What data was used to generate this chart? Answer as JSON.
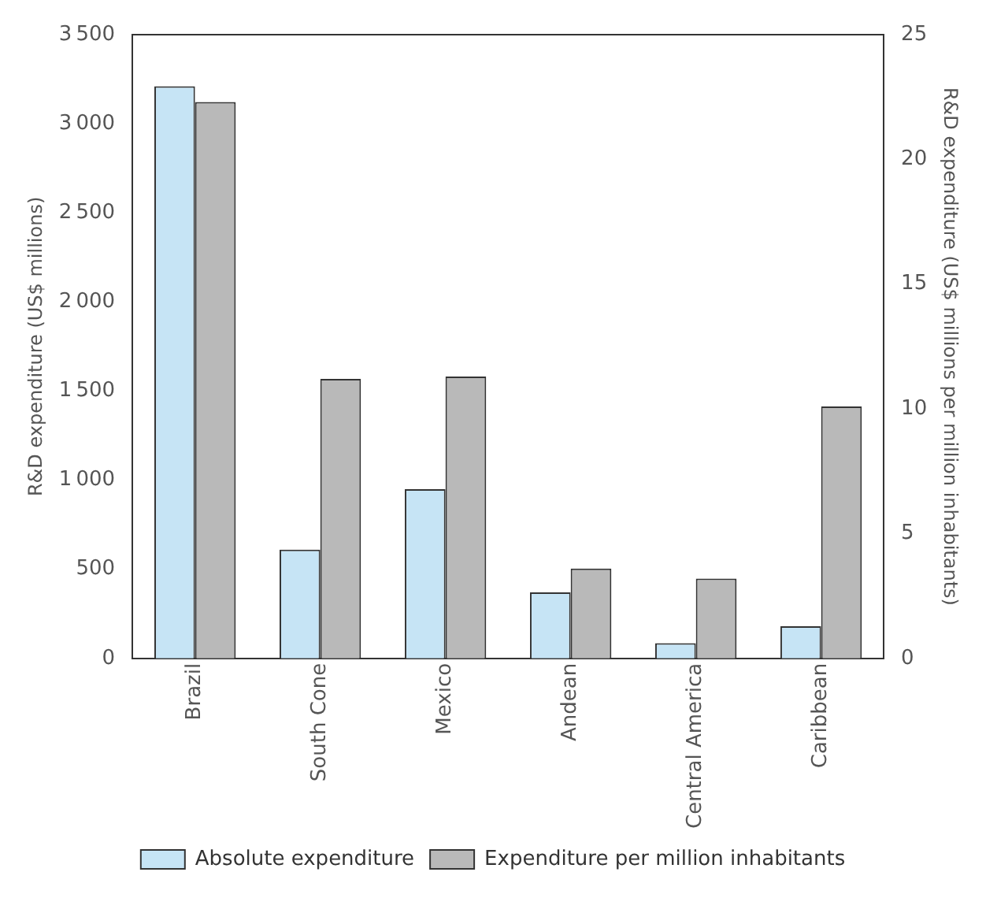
{
  "chart_data": {
    "type": "bar",
    "ylabel": "R&D expenditure (US$ millions)",
    "y2label": "R&D expenditure (US$ millions per million inhabitants)",
    "categories": [
      "Brazil",
      "South Cone",
      "Mexico",
      "Andean",
      "Central America",
      "Caribbean"
    ],
    "series": [
      {
        "name": "Absolute expenditure",
        "color": "#c6e4f5",
        "values": [
          3210,
          610,
          950,
          370,
          85,
          180
        ]
      },
      {
        "name": "Expenditure per million inhabitants",
        "color": "#b9b9b9",
        "axis": "y2",
        "values": [
          22.3,
          11.2,
          11.3,
          3.6,
          3.2,
          10.1
        ]
      }
    ],
    "ylim": [
      0,
      3500
    ],
    "yticks": [
      0,
      500,
      1000,
      1500,
      2000,
      2500,
      3000,
      3500
    ],
    "y2lim": [
      0,
      25
    ],
    "y2ticks": [
      0,
      5,
      10,
      15,
      20,
      25
    ],
    "grid": false,
    "legend": "bottom"
  }
}
